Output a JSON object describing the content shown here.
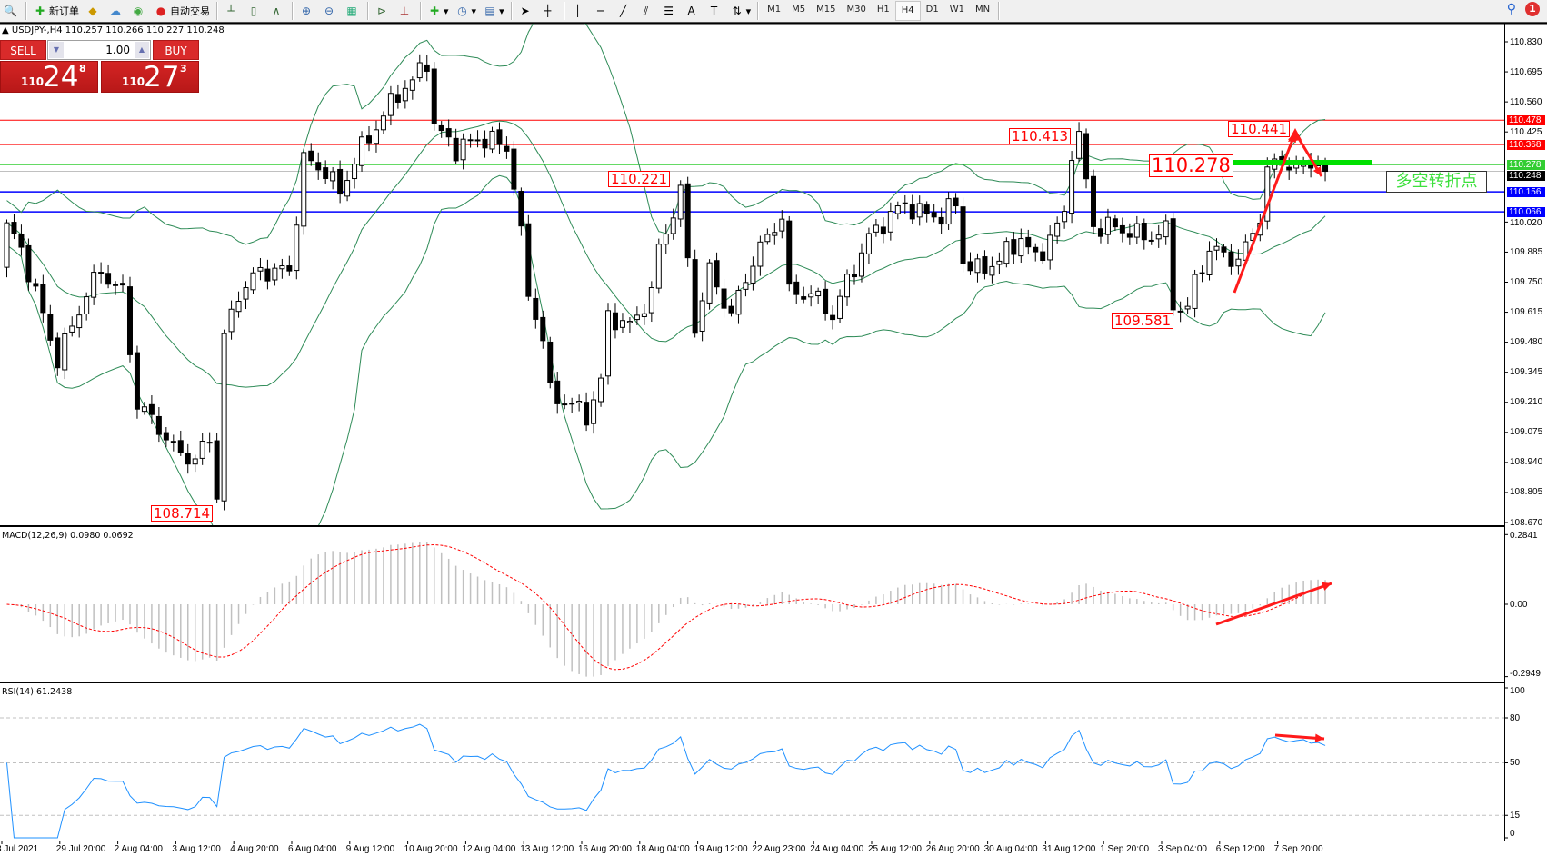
{
  "toolbar": {
    "new_order": "新订单",
    "auto_trading": "自动交易",
    "timeframes": [
      "M1",
      "M5",
      "M15",
      "M30",
      "H1",
      "H4",
      "D1",
      "W1",
      "MN"
    ],
    "active_timeframe": "H4",
    "notification_count": "1"
  },
  "chart": {
    "symbol_header": "USDJPY-,H4  110.257 110.266 110.227 110.248",
    "trade_panel": {
      "sell_label": "SELL",
      "buy_label": "BUY",
      "lot": "1.00",
      "sell_price": {
        "small": "110",
        "big": "24",
        "sup": "8"
      },
      "buy_price": {
        "small": "110",
        "big": "27",
        "sup": "3"
      }
    },
    "price_axis_ticks": [
      "110.830",
      "110.695",
      "110.560",
      "110.425",
      "110.020",
      "109.885",
      "109.750",
      "109.615",
      "109.480",
      "109.345",
      "109.210",
      "109.075",
      "108.940",
      "108.805",
      "108.670"
    ],
    "price_range": [
      108.67,
      110.83
    ],
    "hlines": [
      {
        "price": 110.478,
        "label": "110.478",
        "color": "#ff0000"
      },
      {
        "price": 110.368,
        "label": "110.368",
        "color": "#ff0000"
      },
      {
        "price": 110.278,
        "label": "110.278",
        "color": "#32cd32"
      },
      {
        "price": 110.248,
        "label": "110.248",
        "color": "#000000"
      },
      {
        "price": 110.156,
        "label": "110.156",
        "color": "#0000ff"
      },
      {
        "price": 110.066,
        "label": "110.066",
        "color": "#0000ff"
      }
    ],
    "annotations": {
      "high_1": "110.413",
      "high_2": "110.221",
      "pivot": "110.278",
      "high_3": "110.441",
      "low_1": "108.714",
      "low_2": "109.581"
    },
    "note": "多空转折点",
    "time_labels": [
      "8 Jul 2021",
      "29 Jul 20:00",
      "2 Aug 04:00",
      "3 Aug 12:00",
      "4 Aug 20:00",
      "6 Aug 04:00",
      "9 Aug 12:00",
      "10 Aug 20:00",
      "12 Aug 04:00",
      "13 Aug 12:00",
      "16 Aug 20:00",
      "18 Aug 04:00",
      "19 Aug 12:00",
      "22 Aug 23:00",
      "24 Aug 04:00",
      "25 Aug 12:00",
      "26 Aug 20:00",
      "30 Aug 04:00",
      "31 Aug 12:00",
      "1 Sep 20:00",
      "3 Sep 04:00",
      "6 Sep 12:00",
      "7 Sep 20:00"
    ],
    "price_path": [
      [
        0,
        110.0
      ],
      [
        2,
        109.9
      ],
      [
        5,
        109.6
      ],
      [
        7,
        109.4
      ],
      [
        11,
        109.7
      ],
      [
        13,
        109.8
      ],
      [
        16,
        109.7
      ],
      [
        18,
        109.2
      ],
      [
        21,
        109.1
      ],
      [
        23,
        109.0
      ],
      [
        26,
        108.95
      ],
      [
        28,
        109.05
      ],
      [
        29,
        108.8
      ],
      [
        30,
        109.5
      ],
      [
        32,
        109.7
      ],
      [
        35,
        109.8
      ],
      [
        39,
        109.8
      ],
      [
        41,
        110.3
      ],
      [
        44,
        110.25
      ],
      [
        46,
        110.15
      ],
      [
        48,
        110.3
      ],
      [
        51,
        110.45
      ],
      [
        54,
        110.6
      ],
      [
        56,
        110.65
      ],
      [
        58,
        110.75
      ],
      [
        59,
        110.45
      ],
      [
        62,
        110.35
      ],
      [
        66,
        110.4
      ],
      [
        69,
        110.35
      ],
      [
        70,
        110.2
      ],
      [
        72,
        109.7
      ],
      [
        74,
        109.5
      ],
      [
        75,
        109.25
      ],
      [
        78,
        109.2
      ],
      [
        80,
        109.15
      ],
      [
        82,
        109.3
      ],
      [
        83,
        109.6
      ],
      [
        86,
        109.55
      ],
      [
        89,
        109.7
      ],
      [
        90,
        109.9
      ],
      [
        93,
        110.15
      ],
      [
        95,
        109.55
      ],
      [
        97,
        109.8
      ],
      [
        100,
        109.6
      ],
      [
        103,
        109.85
      ],
      [
        105,
        109.95
      ],
      [
        107,
        110.05
      ],
      [
        108,
        109.7
      ],
      [
        111,
        109.7
      ],
      [
        114,
        109.6
      ],
      [
        116,
        109.75
      ],
      [
        119,
        109.95
      ],
      [
        122,
        110.05
      ],
      [
        124,
        110.1
      ],
      [
        127,
        110.05
      ],
      [
        129,
        110.05
      ],
      [
        131,
        110.1
      ],
      [
        132,
        109.85
      ],
      [
        134,
        109.8
      ],
      [
        137,
        109.85
      ],
      [
        140,
        109.95
      ],
      [
        142,
        109.85
      ],
      [
        144,
        109.95
      ],
      [
        146,
        110.05
      ],
      [
        147,
        110.35
      ],
      [
        148,
        110.4
      ],
      [
        150,
        110.0
      ],
      [
        152,
        110.0
      ],
      [
        155,
        109.98
      ],
      [
        157,
        109.95
      ],
      [
        160,
        109.98
      ],
      [
        161,
        109.65
      ],
      [
        163,
        109.63
      ],
      [
        164,
        109.75
      ],
      [
        166,
        109.9
      ],
      [
        168,
        109.87
      ],
      [
        170,
        109.85
      ],
      [
        171,
        109.9
      ],
      [
        173,
        110.05
      ],
      [
        174,
        110.25
      ],
      [
        176,
        110.3
      ],
      [
        178,
        110.25
      ],
      [
        180,
        110.3
      ],
      [
        182,
        110.248
      ]
    ],
    "bollinger": {
      "period": 20,
      "deviation": 2,
      "color": "#2e8b57"
    },
    "macd": {
      "label": "MACD(12,26,9) 0.0980 0.0692",
      "ticks": [
        "0.2841",
        "0.00",
        "-0.2949"
      ],
      "range": [
        -0.2949,
        0.2841
      ],
      "signal_color": "#ff0000",
      "hist_color": "#c0c0c0"
    },
    "rsi": {
      "label": "RSI(14) 61.2438",
      "ticks": [
        "100",
        "80",
        "50",
        "15",
        "0"
      ],
      "levels": [
        80,
        50,
        15
      ],
      "color": "#1e90ff"
    }
  }
}
